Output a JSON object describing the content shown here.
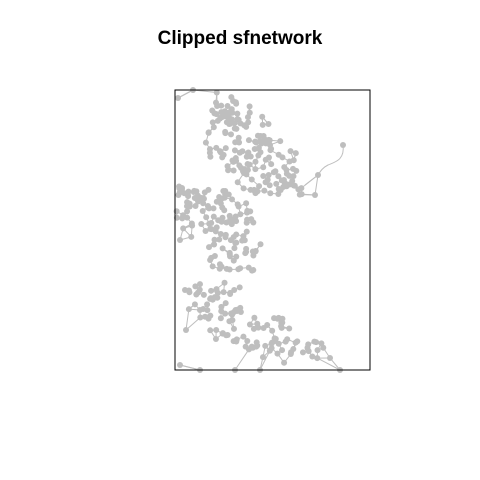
{
  "title": "Clipped sfnetwork",
  "colors": {
    "network": "#bebebe",
    "frame": "#000000",
    "background": "#ffffff"
  }
}
